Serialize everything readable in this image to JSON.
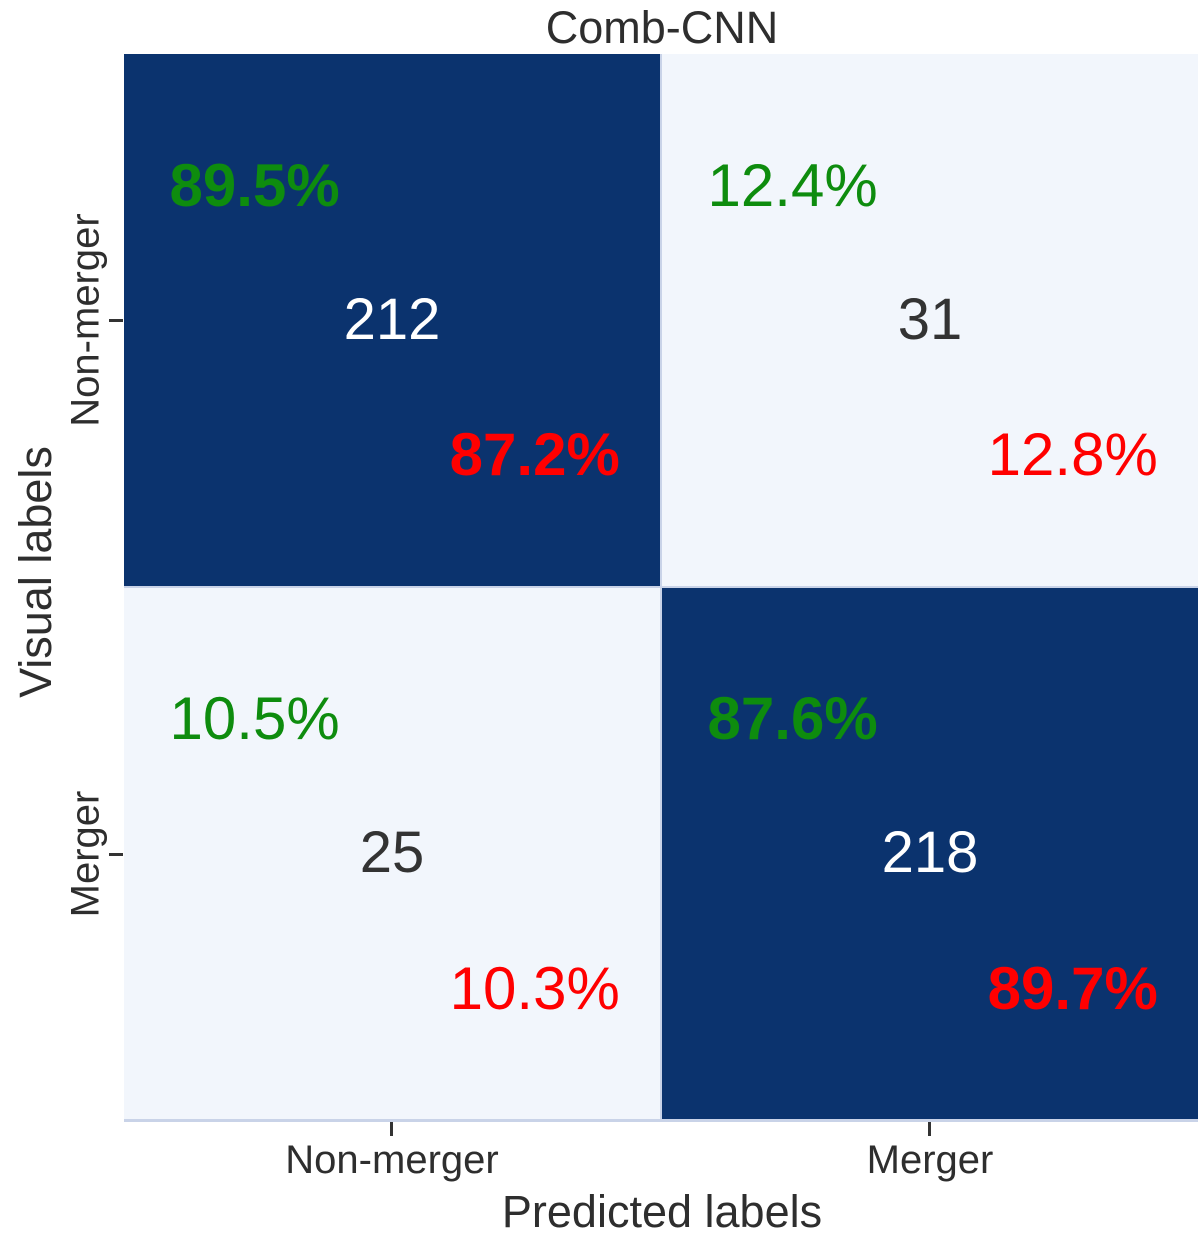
{
  "chart_data": {
    "type": "heatmap",
    "subtype": "confusion-matrix",
    "title": "Comb-CNN",
    "xlabel": "Predicted labels",
    "ylabel": "Visual labels",
    "x_ticklabels": [
      "Non-merger",
      "Merger"
    ],
    "y_ticklabels": [
      "Non-merger",
      "Merger"
    ],
    "legend_position": "none",
    "grid": false,
    "cells": [
      {
        "row_label": "Non-merger",
        "col_label": "Non-merger",
        "count": "212",
        "green_pct": "89.5%",
        "red_pct": "87.2%",
        "background": "dark",
        "diagonal": true
      },
      {
        "row_label": "Non-merger",
        "col_label": "Merger",
        "count": "31",
        "green_pct": "12.4%",
        "red_pct": "12.8%",
        "background": "light",
        "diagonal": false
      },
      {
        "row_label": "Merger",
        "col_label": "Non-merger",
        "count": "25",
        "green_pct": "10.5%",
        "red_pct": "10.3%",
        "background": "light",
        "diagonal": false
      },
      {
        "row_label": "Merger",
        "col_label": "Merger",
        "count": "218",
        "green_pct": "87.6%",
        "red_pct": "89.7%",
        "background": "dark",
        "diagonal": true
      }
    ],
    "colors": {
      "cell_dark": "#0b336e",
      "cell_light": "#f2f6fc",
      "green": "#0e8c0e",
      "red": "#ff0000",
      "count_on_dark": "#ffffff",
      "count_on_light": "#333333",
      "axis_text": "#2e2e2e",
      "grid_line": "#c9d3e8"
    }
  }
}
